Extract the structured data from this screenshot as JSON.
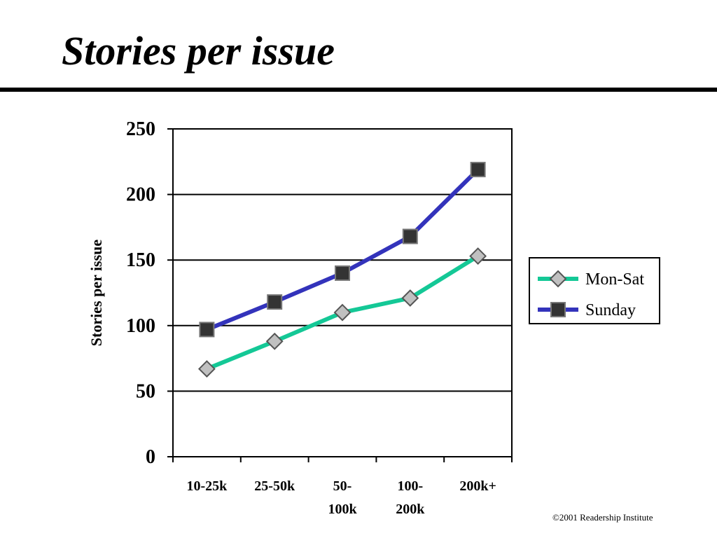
{
  "slide": {
    "title": "Stories per issue",
    "footer": "©2001 Readership Institute"
  },
  "chart_data": {
    "type": "line",
    "ylabel": "Stories per issue",
    "xlabel": "",
    "ylim": [
      0,
      250
    ],
    "yticks": [
      0,
      50,
      100,
      150,
      200,
      250
    ],
    "grid": true,
    "legend_position": "right",
    "categories": [
      [
        "10-25k"
      ],
      [
        "25-50k"
      ],
      [
        "50-",
        "100k"
      ],
      [
        "100-",
        "200k"
      ],
      [
        "200k+"
      ]
    ],
    "series": [
      {
        "name": "Mon-Sat",
        "values": [
          67,
          88,
          110,
          121,
          153
        ],
        "color": "#14c896",
        "marker": "diamond",
        "marker_color": "#c0c0c0"
      },
      {
        "name": "Sunday",
        "values": [
          97,
          118,
          140,
          168,
          219
        ],
        "color": "#3333bb",
        "marker": "square",
        "marker_color": "#333333"
      }
    ]
  }
}
